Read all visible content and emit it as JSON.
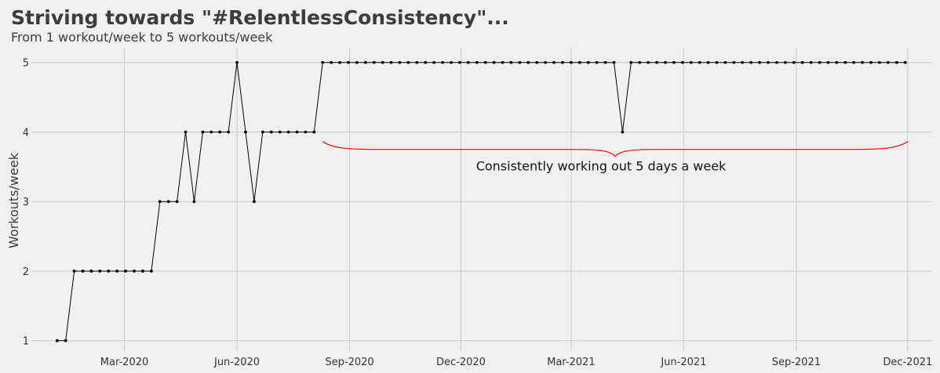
{
  "chart_data": {
    "type": "line",
    "title": "Striving towards \"#RelentlessConsistency\"...",
    "subtitle": "From 1 workout/week to 5 workouts/week",
    "xlabel": "",
    "ylabel": "Workouts/week",
    "ylim": [
      0.85,
      5.2
    ],
    "y_ticks": [
      1,
      2,
      3,
      4,
      5
    ],
    "xlim": [
      "2019-12-16",
      "2021-12-21"
    ],
    "x_ticks": [
      {
        "date": "2020-03-01",
        "label": "Mar-2020"
      },
      {
        "date": "2020-06-01",
        "label": "Jun-2020"
      },
      {
        "date": "2020-09-01",
        "label": "Sep-2020"
      },
      {
        "date": "2020-12-01",
        "label": "Dec-2020"
      },
      {
        "date": "2021-03-01",
        "label": "Mar-2021"
      },
      {
        "date": "2021-06-01",
        "label": "Jun-2021"
      },
      {
        "date": "2021-09-01",
        "label": "Sep-2021"
      },
      {
        "date": "2021-12-01",
        "label": "Dec-2021"
      }
    ],
    "grid": true,
    "line_color": "#000000",
    "series": [
      {
        "x": [
          "2020-01-06",
          "2020-01-13",
          "2020-01-20",
          "2020-01-27",
          "2020-02-03",
          "2020-02-10",
          "2020-02-17",
          "2020-02-24",
          "2020-03-02",
          "2020-03-09",
          "2020-03-16",
          "2020-03-23",
          "2020-03-30",
          "2020-04-06",
          "2020-04-13",
          "2020-04-20",
          "2020-04-27",
          "2020-05-04",
          "2020-05-11",
          "2020-05-18",
          "2020-05-25",
          "2020-06-01",
          "2020-06-08",
          "2020-06-15",
          "2020-06-22",
          "2020-06-29",
          "2020-07-06",
          "2020-07-13",
          "2020-07-20",
          "2020-07-27",
          "2020-08-03",
          "2020-08-10",
          "2020-08-17",
          "2020-08-24",
          "2020-08-31",
          "2020-09-07",
          "2020-09-14",
          "2020-09-21",
          "2020-09-28",
          "2020-10-05",
          "2020-10-12",
          "2020-10-19",
          "2020-10-26",
          "2020-11-02",
          "2020-11-09",
          "2020-11-16",
          "2020-11-23",
          "2020-11-30",
          "2020-12-07",
          "2020-12-14",
          "2020-12-21",
          "2020-12-28",
          "2021-01-04",
          "2021-01-11",
          "2021-01-18",
          "2021-01-25",
          "2021-02-01",
          "2021-02-08",
          "2021-02-15",
          "2021-02-22",
          "2021-03-01",
          "2021-03-08",
          "2021-03-15",
          "2021-03-22",
          "2021-03-29",
          "2021-04-05",
          "2021-04-12",
          "2021-04-19",
          "2021-04-26",
          "2021-05-03",
          "2021-05-10",
          "2021-05-17",
          "2021-05-24",
          "2021-05-31",
          "2021-06-07",
          "2021-06-14",
          "2021-06-21",
          "2021-06-28",
          "2021-07-05",
          "2021-07-12",
          "2021-07-19",
          "2021-07-26",
          "2021-08-02",
          "2021-08-09",
          "2021-08-16",
          "2021-08-23",
          "2021-08-30",
          "2021-09-06",
          "2021-09-13",
          "2021-09-20",
          "2021-09-27",
          "2021-10-04",
          "2021-10-11",
          "2021-10-18",
          "2021-10-25",
          "2021-11-01",
          "2021-11-08",
          "2021-11-15",
          "2021-11-22",
          "2021-11-29"
        ],
        "y": [
          1,
          1,
          2,
          2,
          2,
          2,
          2,
          2,
          2,
          2,
          2,
          2,
          3,
          3,
          3,
          4,
          3,
          4,
          4,
          4,
          4,
          5,
          4,
          3,
          4,
          4,
          4,
          4,
          4,
          4,
          4,
          5,
          5,
          5,
          5,
          5,
          5,
          5,
          5,
          5,
          5,
          5,
          5,
          5,
          5,
          5,
          5,
          5,
          5,
          5,
          5,
          5,
          5,
          5,
          5,
          5,
          5,
          5,
          5,
          5,
          5,
          5,
          5,
          5,
          5,
          5,
          4,
          5,
          5,
          5,
          5,
          5,
          5,
          5,
          5,
          5,
          5,
          5,
          5,
          5,
          5,
          5,
          5,
          5,
          5,
          5,
          5,
          5,
          5,
          5,
          5,
          5,
          5,
          5,
          5,
          5,
          5,
          5,
          5,
          5
        ]
      }
    ],
    "annotation": {
      "text": "Consistently working out 5 days a week",
      "color": "#ff0000",
      "y": 3.75,
      "x_start": "2020-08-10",
      "x_end": "2021-12-01"
    }
  }
}
